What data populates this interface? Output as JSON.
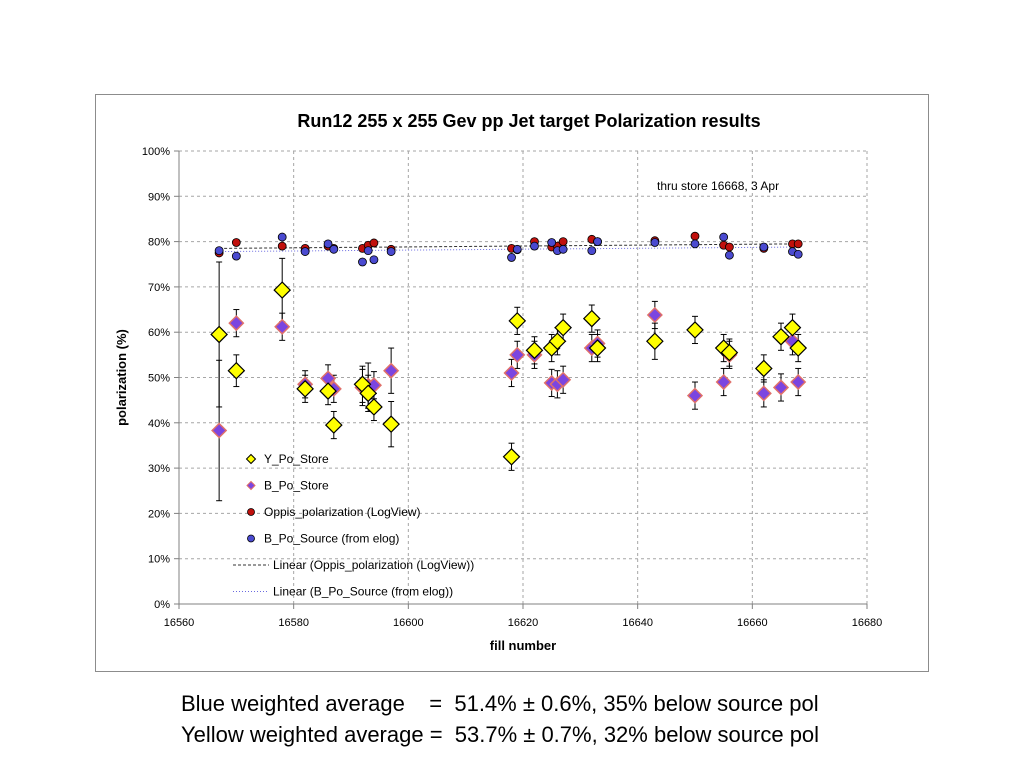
{
  "chart_data": {
    "type": "scatter",
    "title": "Run12 255 x 255 Gev pp Jet target Polarization results",
    "xlabel": "fill number",
    "ylabel": "polarization (%)",
    "xlim": [
      16560,
      16680
    ],
    "ylim": [
      0,
      100
    ],
    "x_ticks": [
      "16560",
      "16580",
      "16600",
      "16620",
      "16640",
      "16660",
      "16680"
    ],
    "y_ticks": [
      "0%",
      "10%",
      "20%",
      "30%",
      "40%",
      "50%",
      "60%",
      "70%",
      "80%",
      "90%",
      "100%"
    ],
    "grid": true,
    "legend_position": "lower-left",
    "annotation": "thru store 16668, 3 Apr",
    "series": [
      {
        "name": "Y_Po_Store",
        "marker": "diamond-large",
        "color": "#ffff00",
        "edge": "#000000",
        "points": [
          {
            "x": 16567,
            "y": 59.5,
            "err": 16.0
          },
          {
            "x": 16570,
            "y": 51.5,
            "err": 3.5
          },
          {
            "x": 16578,
            "y": 69.3,
            "err": 7.0
          },
          {
            "x": 16582,
            "y": 47.5,
            "err": 3.0
          },
          {
            "x": 16586,
            "y": 47.0,
            "err": 3.0
          },
          {
            "x": 16587,
            "y": 39.5,
            "err": 3.0
          },
          {
            "x": 16592,
            "y": 48.5,
            "err": 4.0
          },
          {
            "x": 16593,
            "y": 46.5,
            "err": 4.0
          },
          {
            "x": 16594,
            "y": 43.5,
            "err": 3.0
          },
          {
            "x": 16597,
            "y": 39.7,
            "err": 5.0
          },
          {
            "x": 16618,
            "y": 32.5,
            "err": 3.0
          },
          {
            "x": 16619,
            "y": 62.5,
            "err": 3.0
          },
          {
            "x": 16622,
            "y": 56.0,
            "err": 3.0
          },
          {
            "x": 16625,
            "y": 56.5,
            "err": 3.0
          },
          {
            "x": 16626,
            "y": 58.0,
            "err": 3.0
          },
          {
            "x": 16627,
            "y": 61.0,
            "err": 3.0
          },
          {
            "x": 16632,
            "y": 63.0,
            "err": 3.0
          },
          {
            "x": 16633,
            "y": 56.5,
            "err": 3.0
          },
          {
            "x": 16643,
            "y": 58.0,
            "err": 4.0
          },
          {
            "x": 16650,
            "y": 60.5,
            "err": 3.0
          },
          {
            "x": 16655,
            "y": 56.5,
            "err": 3.0
          },
          {
            "x": 16656,
            "y": 55.5,
            "err": 3.0
          },
          {
            "x": 16662,
            "y": 52.0,
            "err": 3.0
          },
          {
            "x": 16665,
            "y": 59.0,
            "err": 3.0
          },
          {
            "x": 16667,
            "y": 61.0,
            "err": 3.0
          },
          {
            "x": 16668,
            "y": 56.5,
            "err": 3.0
          }
        ]
      },
      {
        "name": "B_Po_Store",
        "marker": "diamond",
        "color": "#7b45e0",
        "edge": "#e0706a",
        "points": [
          {
            "x": 16567,
            "y": 38.3,
            "err": 15.5
          },
          {
            "x": 16570,
            "y": 62.0,
            "err": 3.0
          },
          {
            "x": 16578,
            "y": 61.2,
            "err": 3.0
          },
          {
            "x": 16582,
            "y": 48.5,
            "err": 3.0
          },
          {
            "x": 16586,
            "y": 49.8,
            "err": 3.0
          },
          {
            "x": 16587,
            "y": 47.5,
            "err": 3.0
          },
          {
            "x": 16592,
            "y": 47.8,
            "err": 4.0
          },
          {
            "x": 16593,
            "y": 48.2,
            "err": 5.0
          },
          {
            "x": 16594,
            "y": 48.3,
            "err": 3.0
          },
          {
            "x": 16597,
            "y": 51.5,
            "err": 5.0
          },
          {
            "x": 16618,
            "y": 51.0,
            "err": 3.0
          },
          {
            "x": 16619,
            "y": 55.0,
            "err": 3.0
          },
          {
            "x": 16622,
            "y": 55.0,
            "err": 3.0
          },
          {
            "x": 16625,
            "y": 48.8,
            "err": 3.0
          },
          {
            "x": 16626,
            "y": 48.5,
            "err": 3.0
          },
          {
            "x": 16627,
            "y": 49.5,
            "err": 3.0
          },
          {
            "x": 16632,
            "y": 56.5,
            "err": 3.0
          },
          {
            "x": 16633,
            "y": 57.5,
            "err": 3.0
          },
          {
            "x": 16643,
            "y": 63.8,
            "err": 3.0
          },
          {
            "x": 16650,
            "y": 46.0,
            "err": 3.0
          },
          {
            "x": 16655,
            "y": 49.0,
            "err": 3.0
          },
          {
            "x": 16656,
            "y": 55.0,
            "err": 3.0
          },
          {
            "x": 16662,
            "y": 46.5,
            "err": 3.0
          },
          {
            "x": 16665,
            "y": 47.8,
            "err": 3.0
          },
          {
            "x": 16667,
            "y": 58.0,
            "err": 3.0
          },
          {
            "x": 16668,
            "y": 49.0,
            "err": 3.0
          }
        ]
      },
      {
        "name": "Oppis_polarization (LogView)",
        "marker": "circle",
        "color": "#c0100c",
        "points": [
          {
            "x": 16567,
            "y": 77.5
          },
          {
            "x": 16570,
            "y": 79.8
          },
          {
            "x": 16578,
            "y": 79.0
          },
          {
            "x": 16582,
            "y": 78.5
          },
          {
            "x": 16586,
            "y": 79.0
          },
          {
            "x": 16587,
            "y": 78.5
          },
          {
            "x": 16592,
            "y": 78.5
          },
          {
            "x": 16593,
            "y": 79.2
          },
          {
            "x": 16594,
            "y": 79.7
          },
          {
            "x": 16597,
            "y": 78.3
          },
          {
            "x": 16618,
            "y": 78.5
          },
          {
            "x": 16619,
            "y": 78.2
          },
          {
            "x": 16622,
            "y": 80.0
          },
          {
            "x": 16625,
            "y": 78.8
          },
          {
            "x": 16626,
            "y": 79.0
          },
          {
            "x": 16627,
            "y": 80.0
          },
          {
            "x": 16632,
            "y": 80.5
          },
          {
            "x": 16633,
            "y": 80.0
          },
          {
            "x": 16643,
            "y": 80.2
          },
          {
            "x": 16650,
            "y": 81.2
          },
          {
            "x": 16655,
            "y": 79.2
          },
          {
            "x": 16656,
            "y": 78.8
          },
          {
            "x": 16662,
            "y": 78.5
          },
          {
            "x": 16667,
            "y": 79.5
          },
          {
            "x": 16668,
            "y": 79.5
          }
        ]
      },
      {
        "name": "B_Po_Source (from elog)",
        "marker": "circle",
        "color": "#4a4ad0",
        "points": [
          {
            "x": 16567,
            "y": 78.0
          },
          {
            "x": 16570,
            "y": 76.8
          },
          {
            "x": 16578,
            "y": 81.0
          },
          {
            "x": 16582,
            "y": 77.8
          },
          {
            "x": 16586,
            "y": 79.5
          },
          {
            "x": 16587,
            "y": 78.3
          },
          {
            "x": 16592,
            "y": 75.5
          },
          {
            "x": 16593,
            "y": 78.0
          },
          {
            "x": 16594,
            "y": 76.0
          },
          {
            "x": 16597,
            "y": 77.8
          },
          {
            "x": 16618,
            "y": 76.5
          },
          {
            "x": 16619,
            "y": 78.3
          },
          {
            "x": 16622,
            "y": 79.0
          },
          {
            "x": 16625,
            "y": 79.8
          },
          {
            "x": 16626,
            "y": 78.0
          },
          {
            "x": 16627,
            "y": 78.3
          },
          {
            "x": 16632,
            "y": 78.0
          },
          {
            "x": 16633,
            "y": 80.0
          },
          {
            "x": 16643,
            "y": 79.8
          },
          {
            "x": 16650,
            "y": 79.5
          },
          {
            "x": 16655,
            "y": 81.0
          },
          {
            "x": 16656,
            "y": 77.0
          },
          {
            "x": 16662,
            "y": 78.8
          },
          {
            "x": 16667,
            "y": 77.8
          },
          {
            "x": 16668,
            "y": 77.2
          }
        ]
      },
      {
        "name": "Linear (Oppis_polarization (LogView))",
        "type": "line",
        "style": "dashed",
        "color": "#333333",
        "x": [
          16567,
          16668
        ],
        "values": [
          78.5,
          79.5
        ]
      },
      {
        "name": "Linear (B_Po_Source (from elog))",
        "type": "line",
        "style": "dotted",
        "color": "#6a6ae0",
        "x": [
          16567,
          16668
        ],
        "values": [
          77.8,
          78.8
        ]
      }
    ]
  },
  "captions": {
    "line1": "Blue weighted average    =  51.4% ± 0.6%, 35% below source pol",
    "line2": "Yellow weighted average =  53.7% ± 0.7%, 32% below source pol"
  }
}
